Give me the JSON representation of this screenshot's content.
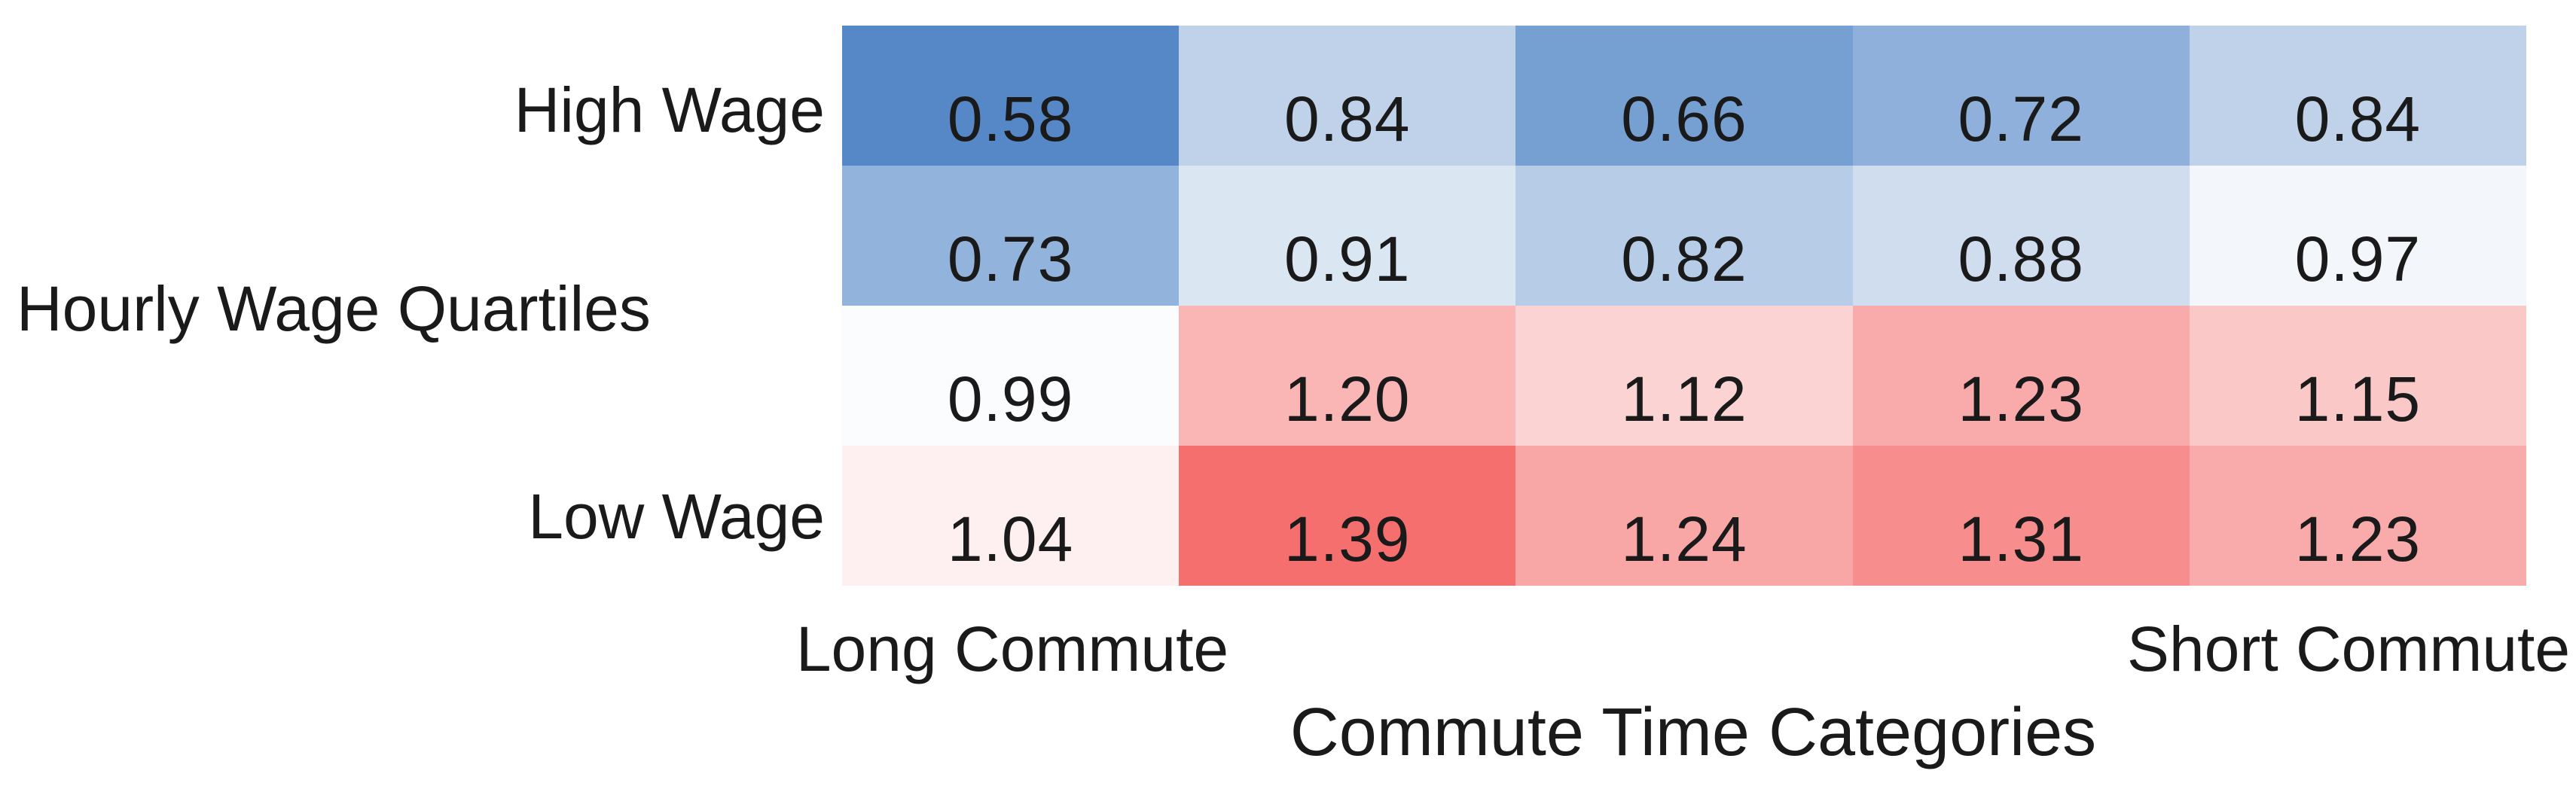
{
  "chart_data": {
    "type": "heatmap",
    "title": "",
    "x_axis_label": "Commute Time Categories",
    "y_axis_label": "Hourly Wage Quartiles",
    "columns": [
      "Long Commute",
      "",
      "",
      "",
      "Short Commute"
    ],
    "rows": [
      "High Wage",
      "",
      "",
      "Low Wage"
    ],
    "values": [
      [
        0.58,
        0.84,
        0.66,
        0.72,
        0.84
      ],
      [
        0.73,
        0.91,
        0.82,
        0.88,
        0.97
      ],
      [
        0.99,
        1.2,
        1.12,
        1.23,
        1.15
      ],
      [
        1.04,
        1.39,
        1.24,
        1.31,
        1.23
      ]
    ],
    "value_decimals": 2,
    "legend": "none",
    "gridlines": "off",
    "background_color": "#ffffff",
    "text_color": "#1a1a1a",
    "colormap": {
      "type": "diverging-blue-white-red",
      "blue_anchor": {
        "value": 0.58,
        "color": "#5688C7"
      },
      "white_anchor": {
        "value": 1.0,
        "color": "#FFFFFF"
      },
      "red_anchor": {
        "value": 1.39,
        "color": "#F56F6F"
      }
    }
  }
}
